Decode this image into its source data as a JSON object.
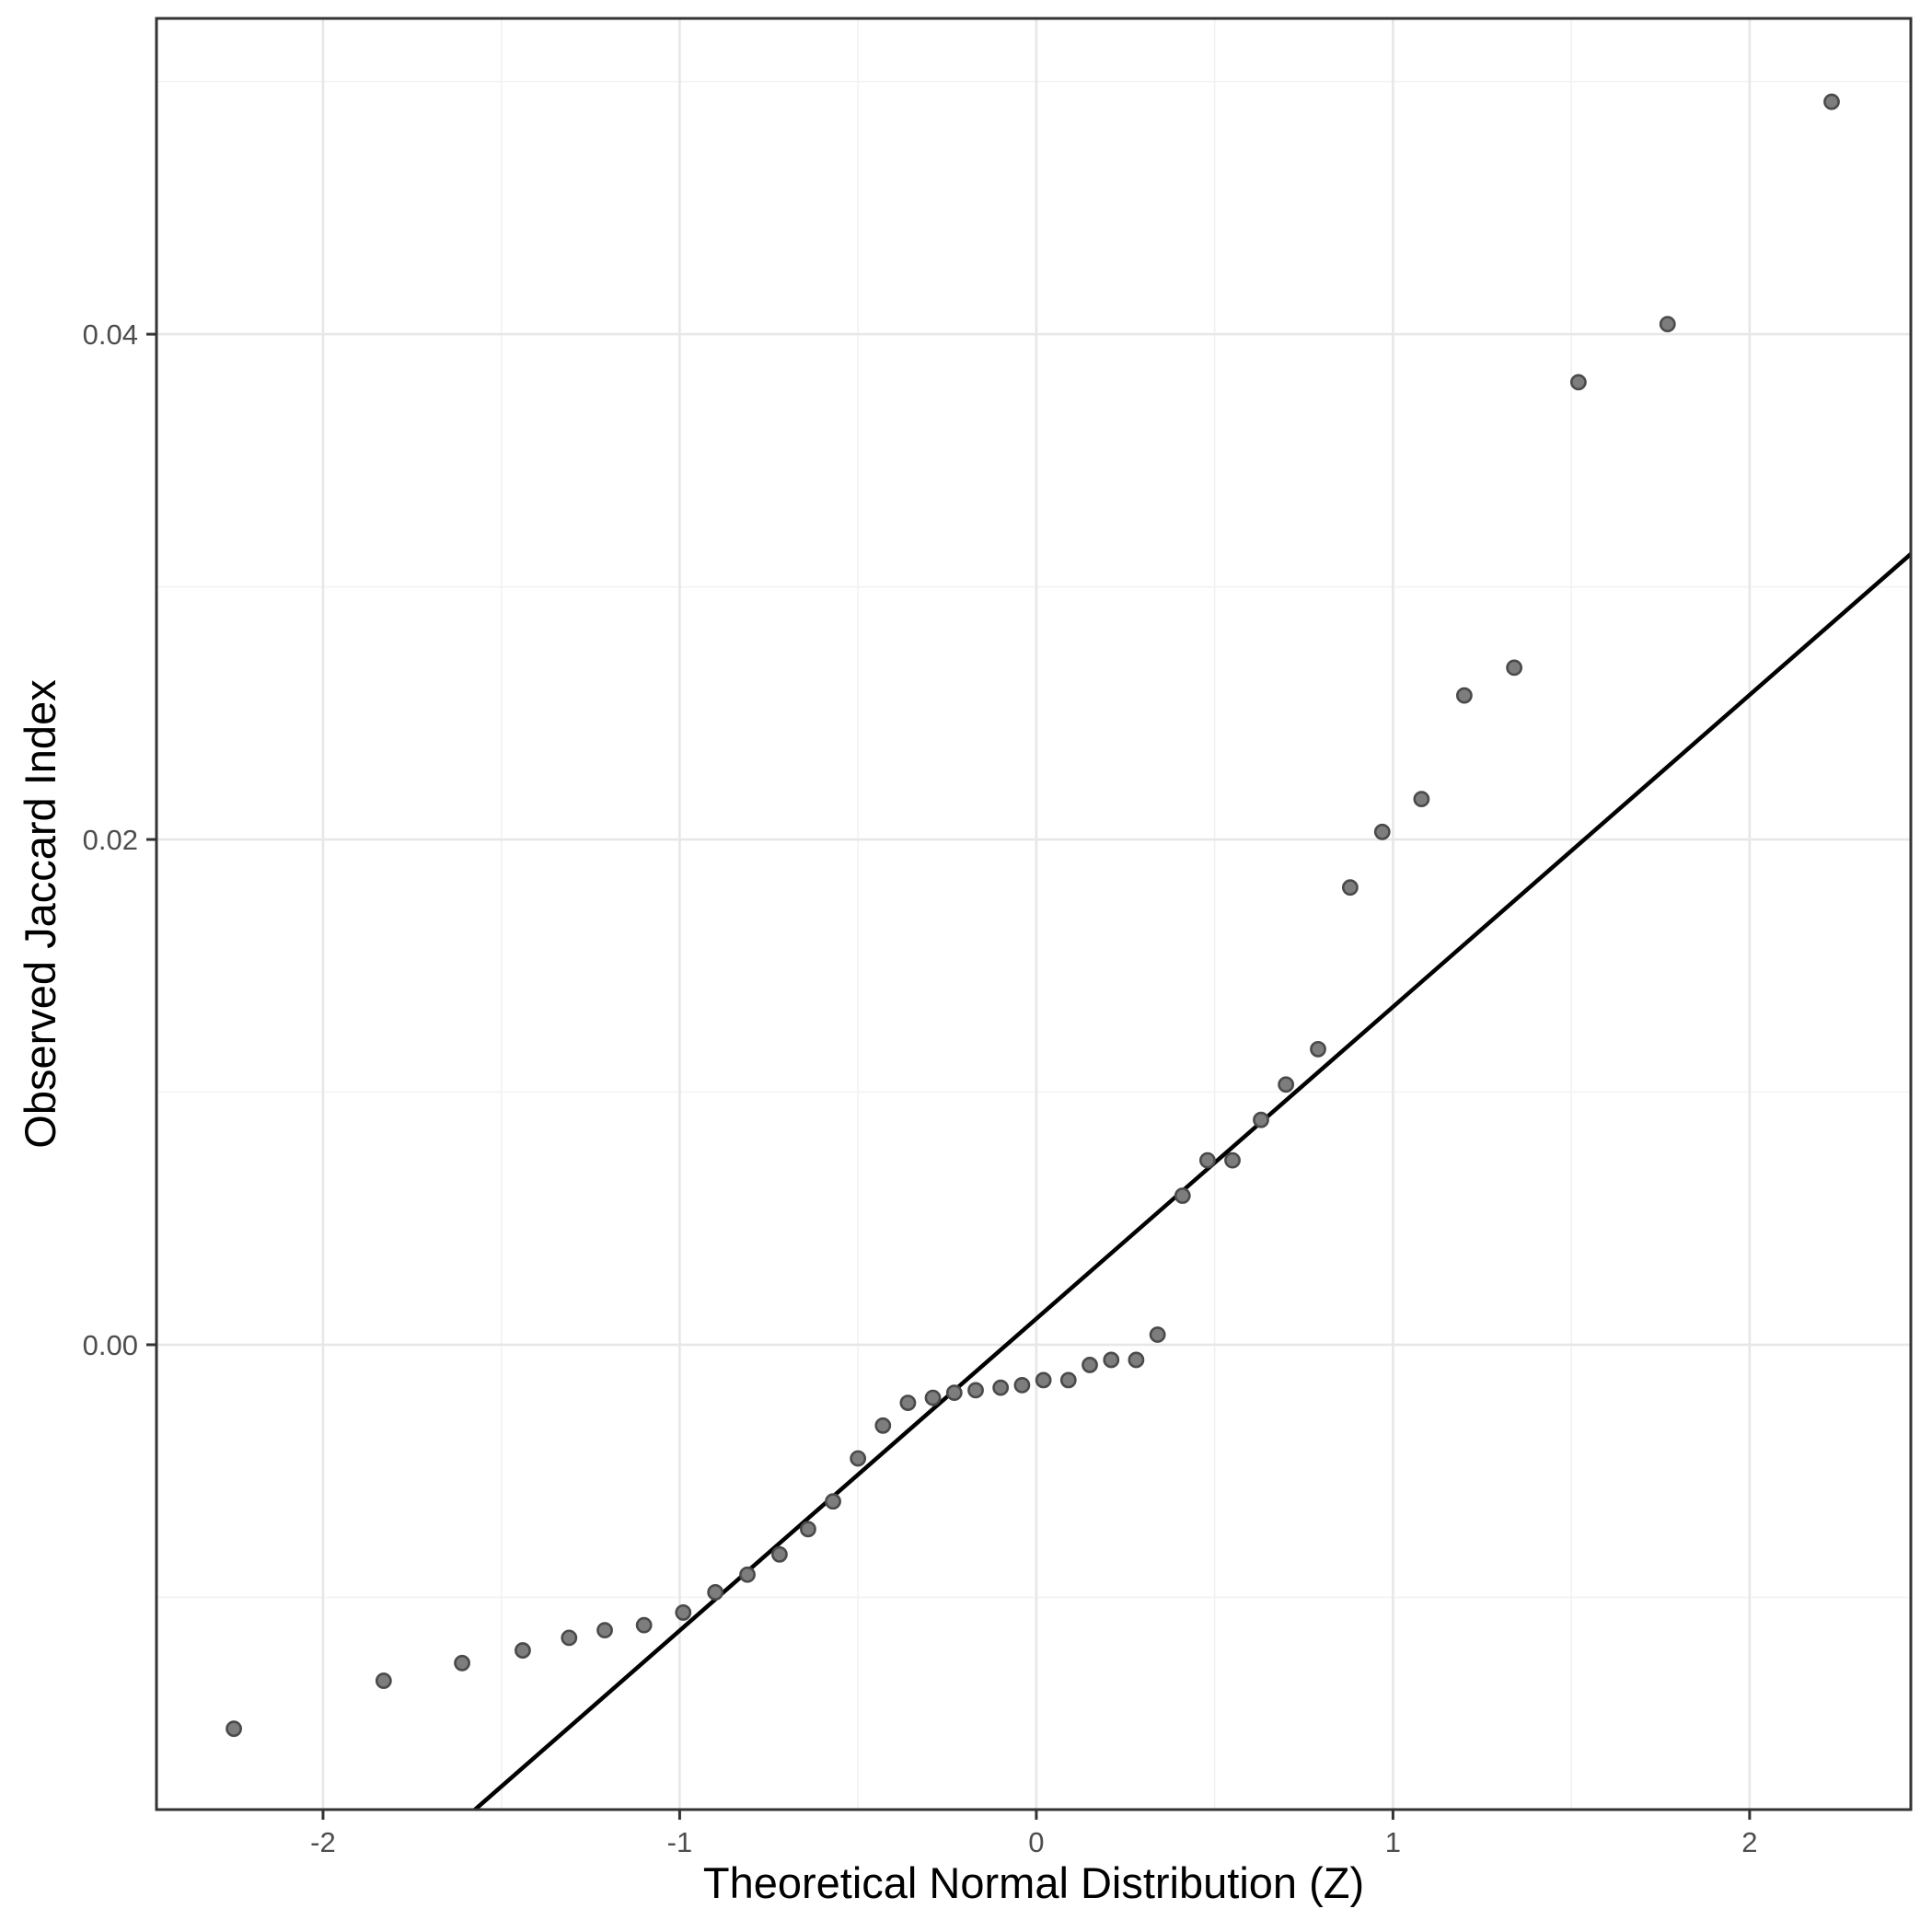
{
  "chart_data": {
    "type": "scatter",
    "title": "",
    "xlabel": "Theoretical Normal Distribution (Z)",
    "ylabel": "Observed Jaccard Index",
    "x_range": [
      -2.467,
      2.452
    ],
    "y_range": [
      -0.0184,
      0.0525
    ],
    "grid": "on",
    "legend": "none",
    "x_major_ticks": [
      {
        "value": -2,
        "label": "-2"
      },
      {
        "value": -1,
        "label": "-1"
      },
      {
        "value": 0,
        "label": "0"
      },
      {
        "value": 1,
        "label": "1"
      },
      {
        "value": 2,
        "label": "2"
      }
    ],
    "y_major_ticks": [
      {
        "value": 0.0,
        "label": "0.00"
      },
      {
        "value": 0.02,
        "label": "0.02"
      },
      {
        "value": 0.04,
        "label": "0.04"
      }
    ],
    "x_minor_gridlines": [
      -1.5,
      -0.5,
      0.5,
      1.5
    ],
    "y_minor_gridlines": [
      -0.01,
      0.01,
      0.03,
      0.05
    ],
    "qq_line": {
      "x1": -1.574,
      "y1": -0.0184,
      "x2": 2.452,
      "y2": 0.0313,
      "slope": 0.0123,
      "intercept": 0.001
    },
    "points": [
      [
        -2.25,
        -0.0152
      ],
      [
        -1.83,
        -0.0133
      ],
      [
        -1.61,
        -0.0126
      ],
      [
        -1.44,
        -0.0121
      ],
      [
        -1.31,
        -0.0116
      ],
      [
        -1.21,
        -0.0113
      ],
      [
        -1.1,
        -0.0111
      ],
      [
        -0.99,
        -0.0106
      ],
      [
        -0.9,
        -0.0098
      ],
      [
        -0.81,
        -0.0091
      ],
      [
        -0.72,
        -0.0083
      ],
      [
        -0.64,
        -0.0073
      ],
      [
        -0.57,
        -0.0062
      ],
      [
        -0.5,
        -0.0045
      ],
      [
        -0.43,
        -0.0032
      ],
      [
        -0.36,
        -0.0023
      ],
      [
        -0.29,
        -0.0021
      ],
      [
        -0.23,
        -0.0019
      ],
      [
        -0.17,
        -0.0018
      ],
      [
        -0.1,
        -0.0017
      ],
      [
        -0.04,
        -0.0016
      ],
      [
        0.02,
        -0.0014
      ],
      [
        0.09,
        -0.0014
      ],
      [
        0.15,
        -0.0008
      ],
      [
        0.21,
        -0.0006
      ],
      [
        0.28,
        -0.0006
      ],
      [
        0.34,
        0.0004
      ],
      [
        0.41,
        0.0059
      ],
      [
        0.48,
        0.0073
      ],
      [
        0.55,
        0.0073
      ],
      [
        0.63,
        0.0089
      ],
      [
        0.7,
        0.0103
      ],
      [
        0.79,
        0.0117
      ],
      [
        0.88,
        0.0181
      ],
      [
        0.97,
        0.0203
      ],
      [
        1.08,
        0.0216
      ],
      [
        1.2,
        0.0257
      ],
      [
        1.34,
        0.0268
      ],
      [
        1.52,
        0.0381
      ],
      [
        1.77,
        0.0404
      ],
      [
        2.23,
        0.0492
      ]
    ],
    "colors": {
      "background": "#ffffff",
      "panel_background": "#ffffff",
      "grid_major": "#e7e7e7",
      "grid_minor": "#f2f2f2",
      "panel_border": "#333333",
      "tick_mark": "#333333",
      "tick_label": "#4d4d4d",
      "axis_title": "#000000",
      "point_fill": "#7d7d7d",
      "point_stroke": "#4a4a4a",
      "qq_line_color": "#000000"
    }
  }
}
